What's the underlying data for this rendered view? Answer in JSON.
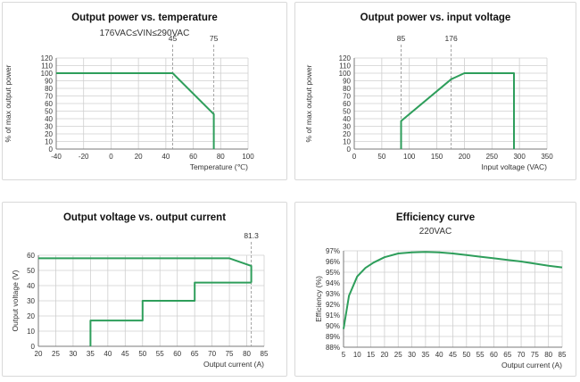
{
  "colors": {
    "line": "#2e9e5b",
    "grid": "#cfcfcf",
    "axis": "#7a7a7a",
    "ref": "#9a9a9a"
  },
  "chart_data": [
    {
      "type": "line",
      "title": "Output power vs. temperature",
      "subtitle": "176VAC≤VIN≤290VAC",
      "xlabel": "Temperature (℃)",
      "ylabel": "% of max output power",
      "xlim": [
        -40,
        100
      ],
      "ylim": [
        0,
        120
      ],
      "xticks": [
        -40,
        -20,
        0,
        20,
        40,
        60,
        80,
        100
      ],
      "yticks": [
        0,
        10,
        20,
        30,
        40,
        50,
        60,
        70,
        80,
        90,
        100,
        110,
        120
      ],
      "xticklabels": [
        "-40",
        "-20",
        "0",
        "20",
        "40",
        "60",
        "80",
        "100"
      ],
      "yticklabels": [
        "0",
        "10",
        "20",
        "30",
        "40",
        "50",
        "60",
        "70",
        "80",
        "90",
        "100",
        "110",
        "120"
      ],
      "grid": true,
      "ref_lines": [
        {
          "x": 45,
          "label": "45"
        },
        {
          "x": 75,
          "label": "75"
        }
      ],
      "series": [
        {
          "x": [
            -40,
            45,
            75,
            75
          ],
          "y": [
            100,
            100,
            46,
            0
          ]
        }
      ]
    },
    {
      "type": "line",
      "title": "Output power vs. input voltage",
      "subtitle": "",
      "xlabel": "Input voltage (VAC)",
      "ylabel": "% of max output power",
      "xlim": [
        0,
        350
      ],
      "ylim": [
        0,
        120
      ],
      "xticks": [
        0,
        50,
        100,
        150,
        200,
        250,
        300,
        350
      ],
      "yticks": [
        0,
        10,
        20,
        30,
        40,
        50,
        60,
        70,
        80,
        90,
        100,
        110,
        120
      ],
      "xticklabels": [
        "0",
        "50",
        "100",
        "150",
        "200",
        "250",
        "300",
        "350"
      ],
      "yticklabels": [
        "0",
        "10",
        "20",
        "30",
        "40",
        "50",
        "60",
        "70",
        "80",
        "90",
        "100",
        "110",
        "120"
      ],
      "grid": true,
      "ref_lines": [
        {
          "x": 85,
          "label": "85"
        },
        {
          "x": 176,
          "label": "176"
        }
      ],
      "series": [
        {
          "x": [
            85,
            85,
            176,
            200,
            290,
            290
          ],
          "y": [
            0,
            37,
            92,
            100,
            100,
            0
          ]
        }
      ]
    },
    {
      "type": "line",
      "title": "Output voltage vs. output current",
      "subtitle": "",
      "xlabel": "Output current (A)",
      "ylabel": "Output voltage (V)",
      "xlim": [
        20,
        85
      ],
      "ylim": [
        0,
        60
      ],
      "xticks": [
        20,
        25,
        30,
        35,
        40,
        45,
        50,
        55,
        60,
        65,
        70,
        75,
        80,
        85
      ],
      "yticks": [
        0,
        10,
        20,
        30,
        40,
        50,
        60
      ],
      "xticklabels": [
        "20",
        "25",
        "30",
        "35",
        "40",
        "45",
        "50",
        "55",
        "60",
        "65",
        "70",
        "75",
        "80",
        "85"
      ],
      "yticklabels": [
        "0",
        "10",
        "20",
        "30",
        "40",
        "50",
        "60"
      ],
      "grid": true,
      "ref_lines": [
        {
          "x": 81.3,
          "label": "81.3"
        }
      ],
      "series": [
        {
          "x": [
            20,
            75,
            81.3,
            81.3
          ],
          "y": [
            58,
            58,
            53,
            42
          ]
        },
        {
          "x": [
            35,
            35,
            50,
            50,
            65,
            65,
            81.3
          ],
          "y": [
            0,
            17,
            17,
            30,
            30,
            42,
            42
          ]
        }
      ]
    },
    {
      "type": "line",
      "title": "Efficiency curve",
      "subtitle": "220VAC",
      "xlabel": "Output current (A)",
      "ylabel": "Efficiency (%)",
      "xlim": [
        5,
        85
      ],
      "ylim": [
        88,
        97
      ],
      "xticks": [
        5,
        10,
        15,
        20,
        25,
        30,
        35,
        40,
        45,
        50,
        55,
        60,
        65,
        70,
        75,
        80,
        85
      ],
      "yticks": [
        88,
        89,
        90,
        91,
        92,
        93,
        94,
        95,
        96,
        97
      ],
      "xticklabels": [
        "5",
        "10",
        "15",
        "20",
        "25",
        "30",
        "35",
        "40",
        "45",
        "50",
        "55",
        "60",
        "65",
        "70",
        "75",
        "80",
        "85"
      ],
      "yticklabels": [
        "88%",
        "89%",
        "90%",
        "91%",
        "92%",
        "93%",
        "94%",
        "95%",
        "96%",
        "97%"
      ],
      "grid": true,
      "ref_lines": [],
      "series": [
        {
          "x": [
            5,
            7,
            10,
            13,
            16,
            20,
            25,
            30,
            35,
            40,
            45,
            50,
            55,
            60,
            65,
            70,
            75,
            80,
            85
          ],
          "y": [
            89.7,
            92.8,
            94.6,
            95.4,
            95.9,
            96.4,
            96.75,
            96.85,
            96.9,
            96.85,
            96.75,
            96.6,
            96.45,
            96.3,
            96.15,
            96.0,
            95.8,
            95.6,
            95.45
          ]
        }
      ]
    }
  ]
}
